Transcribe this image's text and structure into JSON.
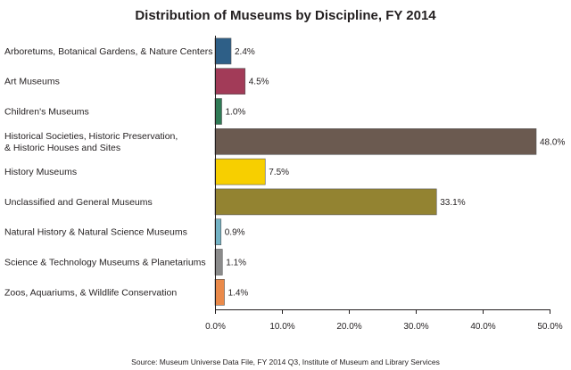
{
  "chart_data": {
    "type": "bar",
    "orientation": "horizontal",
    "title": "Distribution of Museums by Discipline, FY 2014",
    "categories": [
      [
        "Arboretums, Botanical Gardens, & Nature Centers"
      ],
      [
        "Art Museums"
      ],
      [
        "Children's Museums"
      ],
      [
        "Historical Societies, Historic Preservation,",
        "& Historic Houses and Sites"
      ],
      [
        "History Museums"
      ],
      [
        "Unclassified and General Museums"
      ],
      [
        "Natural History & Natural Science Museums"
      ],
      [
        "Science & Technology Museums & Planetariums"
      ],
      [
        "Zoos, Aquariums, & Wildlife Conservation"
      ]
    ],
    "values": [
      2.4,
      4.5,
      1.0,
      48.0,
      7.5,
      33.1,
      0.9,
      1.1,
      1.4
    ],
    "value_labels": [
      "2.4%",
      "4.5%",
      "1.0%",
      "48.0%",
      "7.5%",
      "33.1%",
      "0.9%",
      "1.1%",
      "1.4%"
    ],
    "colors": [
      "#2e5f87",
      "#a23b58",
      "#2f7a55",
      "#6b5a50",
      "#f7cf00",
      "#938331",
      "#74b3c5",
      "#8b8b8b",
      "#ea8a4a"
    ],
    "xlim": [
      0,
      50
    ],
    "x_ticks": [
      0,
      10,
      20,
      30,
      40,
      50
    ],
    "x_tick_labels": [
      "0.0%",
      "10.0%",
      "20.0%",
      "30.0%",
      "40.0%",
      "50.0%"
    ],
    "xlabel": "",
    "ylabel": "",
    "grid": false,
    "legend": "none",
    "source": "Source: Museum Universe Data File, FY 2014 Q3, Institute of Museum and Library Services"
  }
}
